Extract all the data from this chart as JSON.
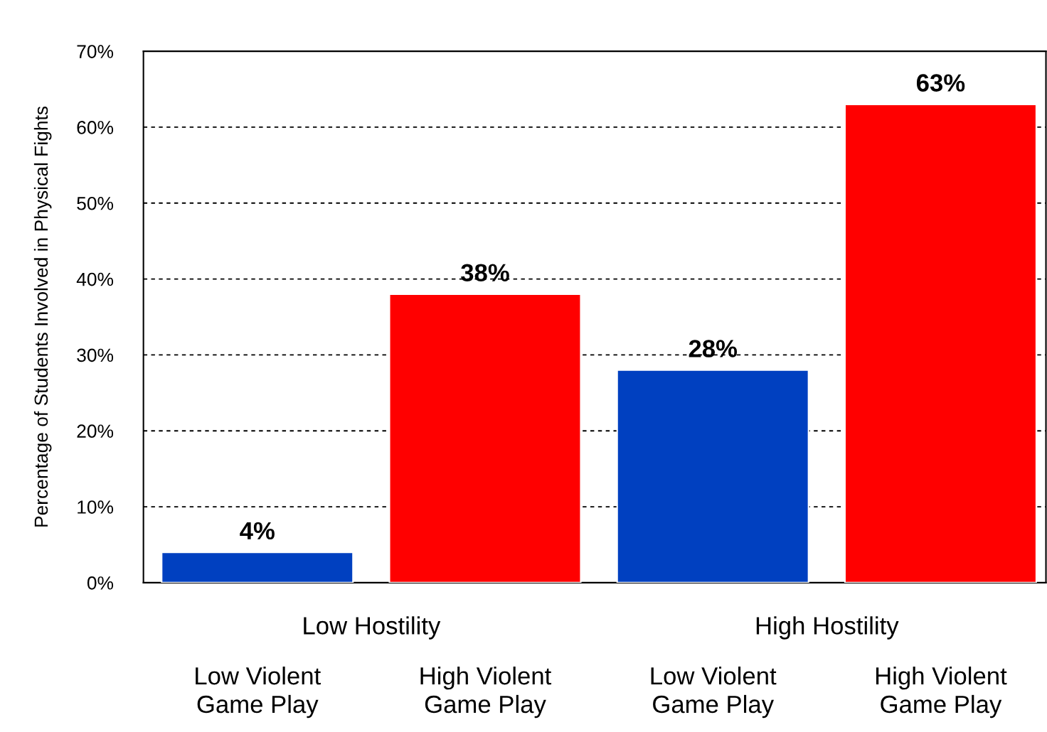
{
  "chart_data": {
    "type": "bar",
    "ylabel": "Percentage of Students Involved in Physical Fights",
    "categories": [
      "Low Violent\nGame Play",
      "High Violent\nGame Play",
      "Low Violent\nGame Play",
      "High Violent\nGame Play"
    ],
    "values": [
      4,
      38,
      28,
      63
    ],
    "colors": [
      "#0040c0",
      "#ff0000",
      "#0040c0",
      "#ff0000"
    ],
    "value_labels": [
      "4%",
      "38%",
      "28%",
      "63%"
    ],
    "annotations": [
      "Low Hostility",
      "High Hostility"
    ],
    "ylim": [
      0,
      70
    ],
    "yticks": [
      {
        "value": 0,
        "label": "0%"
      },
      {
        "value": 10,
        "label": "10%"
      },
      {
        "value": 20,
        "label": "20%"
      },
      {
        "value": 30,
        "label": "30%"
      },
      {
        "value": 40,
        "label": "40%"
      },
      {
        "value": 50,
        "label": "50%"
      },
      {
        "value": 60,
        "label": "60%"
      },
      {
        "value": 70,
        "label": "70%"
      }
    ],
    "grid": "y"
  }
}
